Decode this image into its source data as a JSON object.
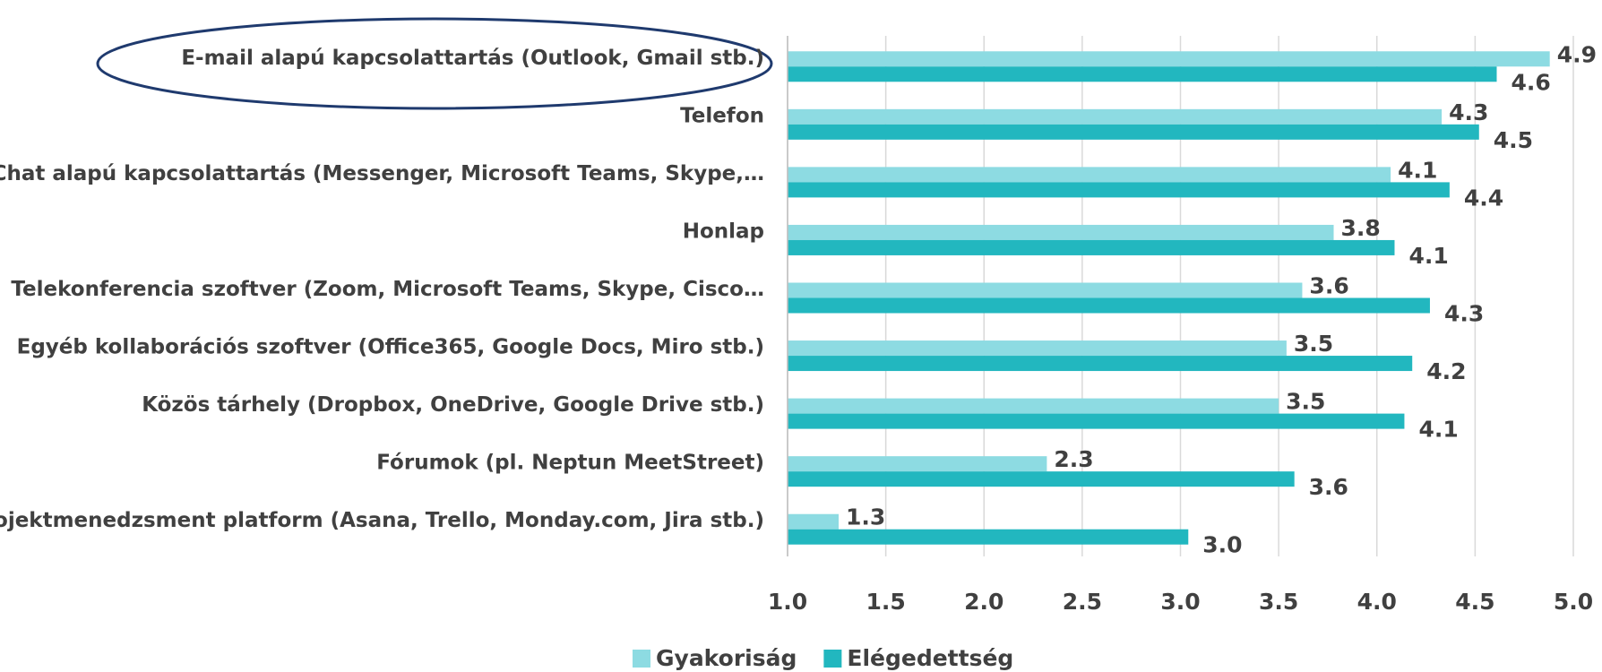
{
  "chart_data": {
    "type": "hbar",
    "categories": [
      "E-mail alapú kapcsolattartás (Outlook, Gmail stb.)",
      "Telefon",
      "Chat alapú kapcsolattartás (Messenger, Microsoft Teams, Skype,…",
      "Honlap",
      "Telekonferencia szoftver (Zoom, Microsoft Teams, Skype, Cisco…",
      "Egyéb kollaborációs szoftver (Office365, Google Docs, Miro stb.)",
      "Közös tárhely (Dropbox, OneDrive, Google Drive stb.)",
      "Fórumok (pl. Neptun MeetStreet)",
      "Projektmenedzsment platform (Asana, Trello, Monday.com, Jira stb.)"
    ],
    "series": [
      {
        "name": "Gyakoriság",
        "color": "#8ddbe2",
        "values": [
          4.88,
          4.33,
          4.07,
          3.78,
          3.62,
          3.54,
          3.5,
          2.32,
          1.26
        ],
        "value_labels": [
          "4.9",
          "4.3",
          "4.1",
          "3.8",
          "3.6",
          "3.5",
          "3.5",
          "2.3",
          "1.3"
        ]
      },
      {
        "name": "Elégedettség",
        "color": "#22b7bf",
        "values": [
          4.61,
          4.52,
          4.37,
          4.09,
          4.27,
          4.18,
          4.14,
          3.58,
          3.04
        ],
        "value_labels": [
          "4.6",
          "4.5",
          "4.4",
          "4.1",
          "4.3",
          "4.2",
          "4.1",
          "3.6",
          "3.0"
        ]
      }
    ],
    "xlim": [
      1,
      5
    ],
    "xticks": [
      {
        "value": 1,
        "label": "1.0"
      },
      {
        "value": 1.5,
        "label": "1.5"
      },
      {
        "value": 2,
        "label": "2.0"
      },
      {
        "value": 2.5,
        "label": "2.5"
      },
      {
        "value": 3,
        "label": "3.0"
      },
      {
        "value": 3.5,
        "label": "3.5"
      },
      {
        "value": 4,
        "label": "4.0"
      },
      {
        "value": 4.5,
        "label": "4.5"
      },
      {
        "value": 5,
        "label": "5.0"
      }
    ],
    "grid": true,
    "legend": "bottom"
  }
}
